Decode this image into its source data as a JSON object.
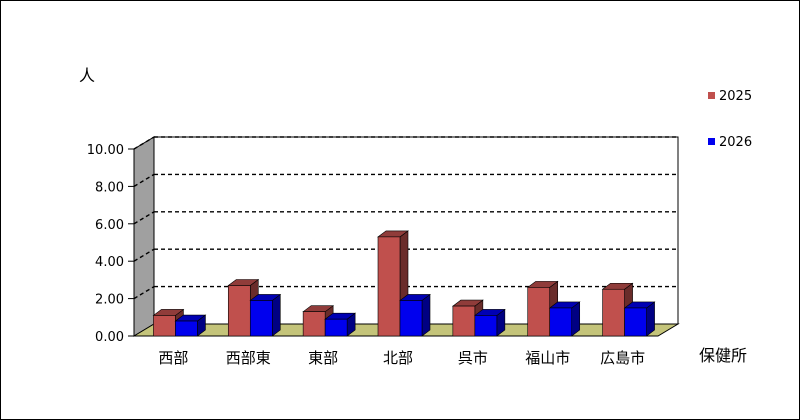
{
  "chart_data": {
    "type": "bar",
    "categories": [
      "西部",
      "西部東",
      "東部",
      "北部",
      "呉市",
      "福山市",
      "広島市"
    ],
    "series": [
      {
        "name": "2025",
        "values": [
          1.1,
          2.7,
          1.3,
          5.3,
          1.6,
          2.6,
          2.5
        ],
        "color": "#C0504D"
      },
      {
        "name": "2026",
        "values": [
          0.8,
          1.9,
          0.9,
          1.9,
          1.1,
          1.5,
          1.5
        ],
        "color": "#0000EE"
      }
    ],
    "ylabel": "人",
    "xlabel": "保健所",
    "ylim": [
      0,
      10
    ],
    "yticks": [
      "0.00",
      "2.00",
      "4.00",
      "6.00",
      "8.00",
      "10.00"
    ],
    "grid": true,
    "legend": "right",
    "three_d": true
  }
}
